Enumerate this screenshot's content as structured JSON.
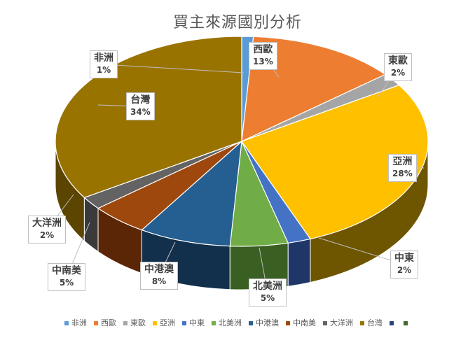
{
  "chart_data": {
    "type": "pie",
    "title": "買主來源國別分析",
    "slices": [
      {
        "name": "非洲",
        "label": "非洲",
        "percent_label": "1%",
        "value": 1,
        "color": "#5b9bd5",
        "side": "#2f5f8f"
      },
      {
        "name": "西歐",
        "label": "西歐",
        "percent_label": "13%",
        "value": 13,
        "color": "#ed7d31",
        "side": "#9c4d16"
      },
      {
        "name": "東歐",
        "label": "東歐",
        "percent_label": "2%",
        "value": 2,
        "color": "#a5a5a5",
        "side": "#5f5f5f"
      },
      {
        "name": "亞洲",
        "label": "亞洲",
        "percent_label": "28%",
        "value": 28,
        "color": "#ffc000",
        "side": "#6e5500"
      },
      {
        "name": "中東",
        "label": "中東",
        "percent_label": "2%",
        "value": 2,
        "color": "#4472c4",
        "side": "#1f3768"
      },
      {
        "name": "北美洲",
        "label": "北美洲",
        "percent_label": "5%",
        "value": 5,
        "color": "#70ad47",
        "side": "#3a5f22"
      },
      {
        "name": "中港澳",
        "label": "中港澳",
        "percent_label": "8%",
        "value": 8,
        "color": "#255e91",
        "side": "#122f4b"
      },
      {
        "name": "中南美",
        "label": "中南美",
        "percent_label": "5%",
        "value": 5,
        "color": "#9e480e",
        "side": "#5a2606"
      },
      {
        "name": "大洋洲",
        "label": "大洋洲",
        "percent_label": "2%",
        "value": 2,
        "color": "#636363",
        "side": "#3a3a3a"
      },
      {
        "name": "台灣",
        "label": "台灣",
        "percent_label": "34%",
        "value": 34,
        "color": "#997300",
        "side": "#5c4500"
      }
    ],
    "legend": {
      "placement": "bottom",
      "extra_markers": [
        {
          "color": "#264478"
        },
        {
          "color": "#43682b"
        }
      ]
    }
  }
}
